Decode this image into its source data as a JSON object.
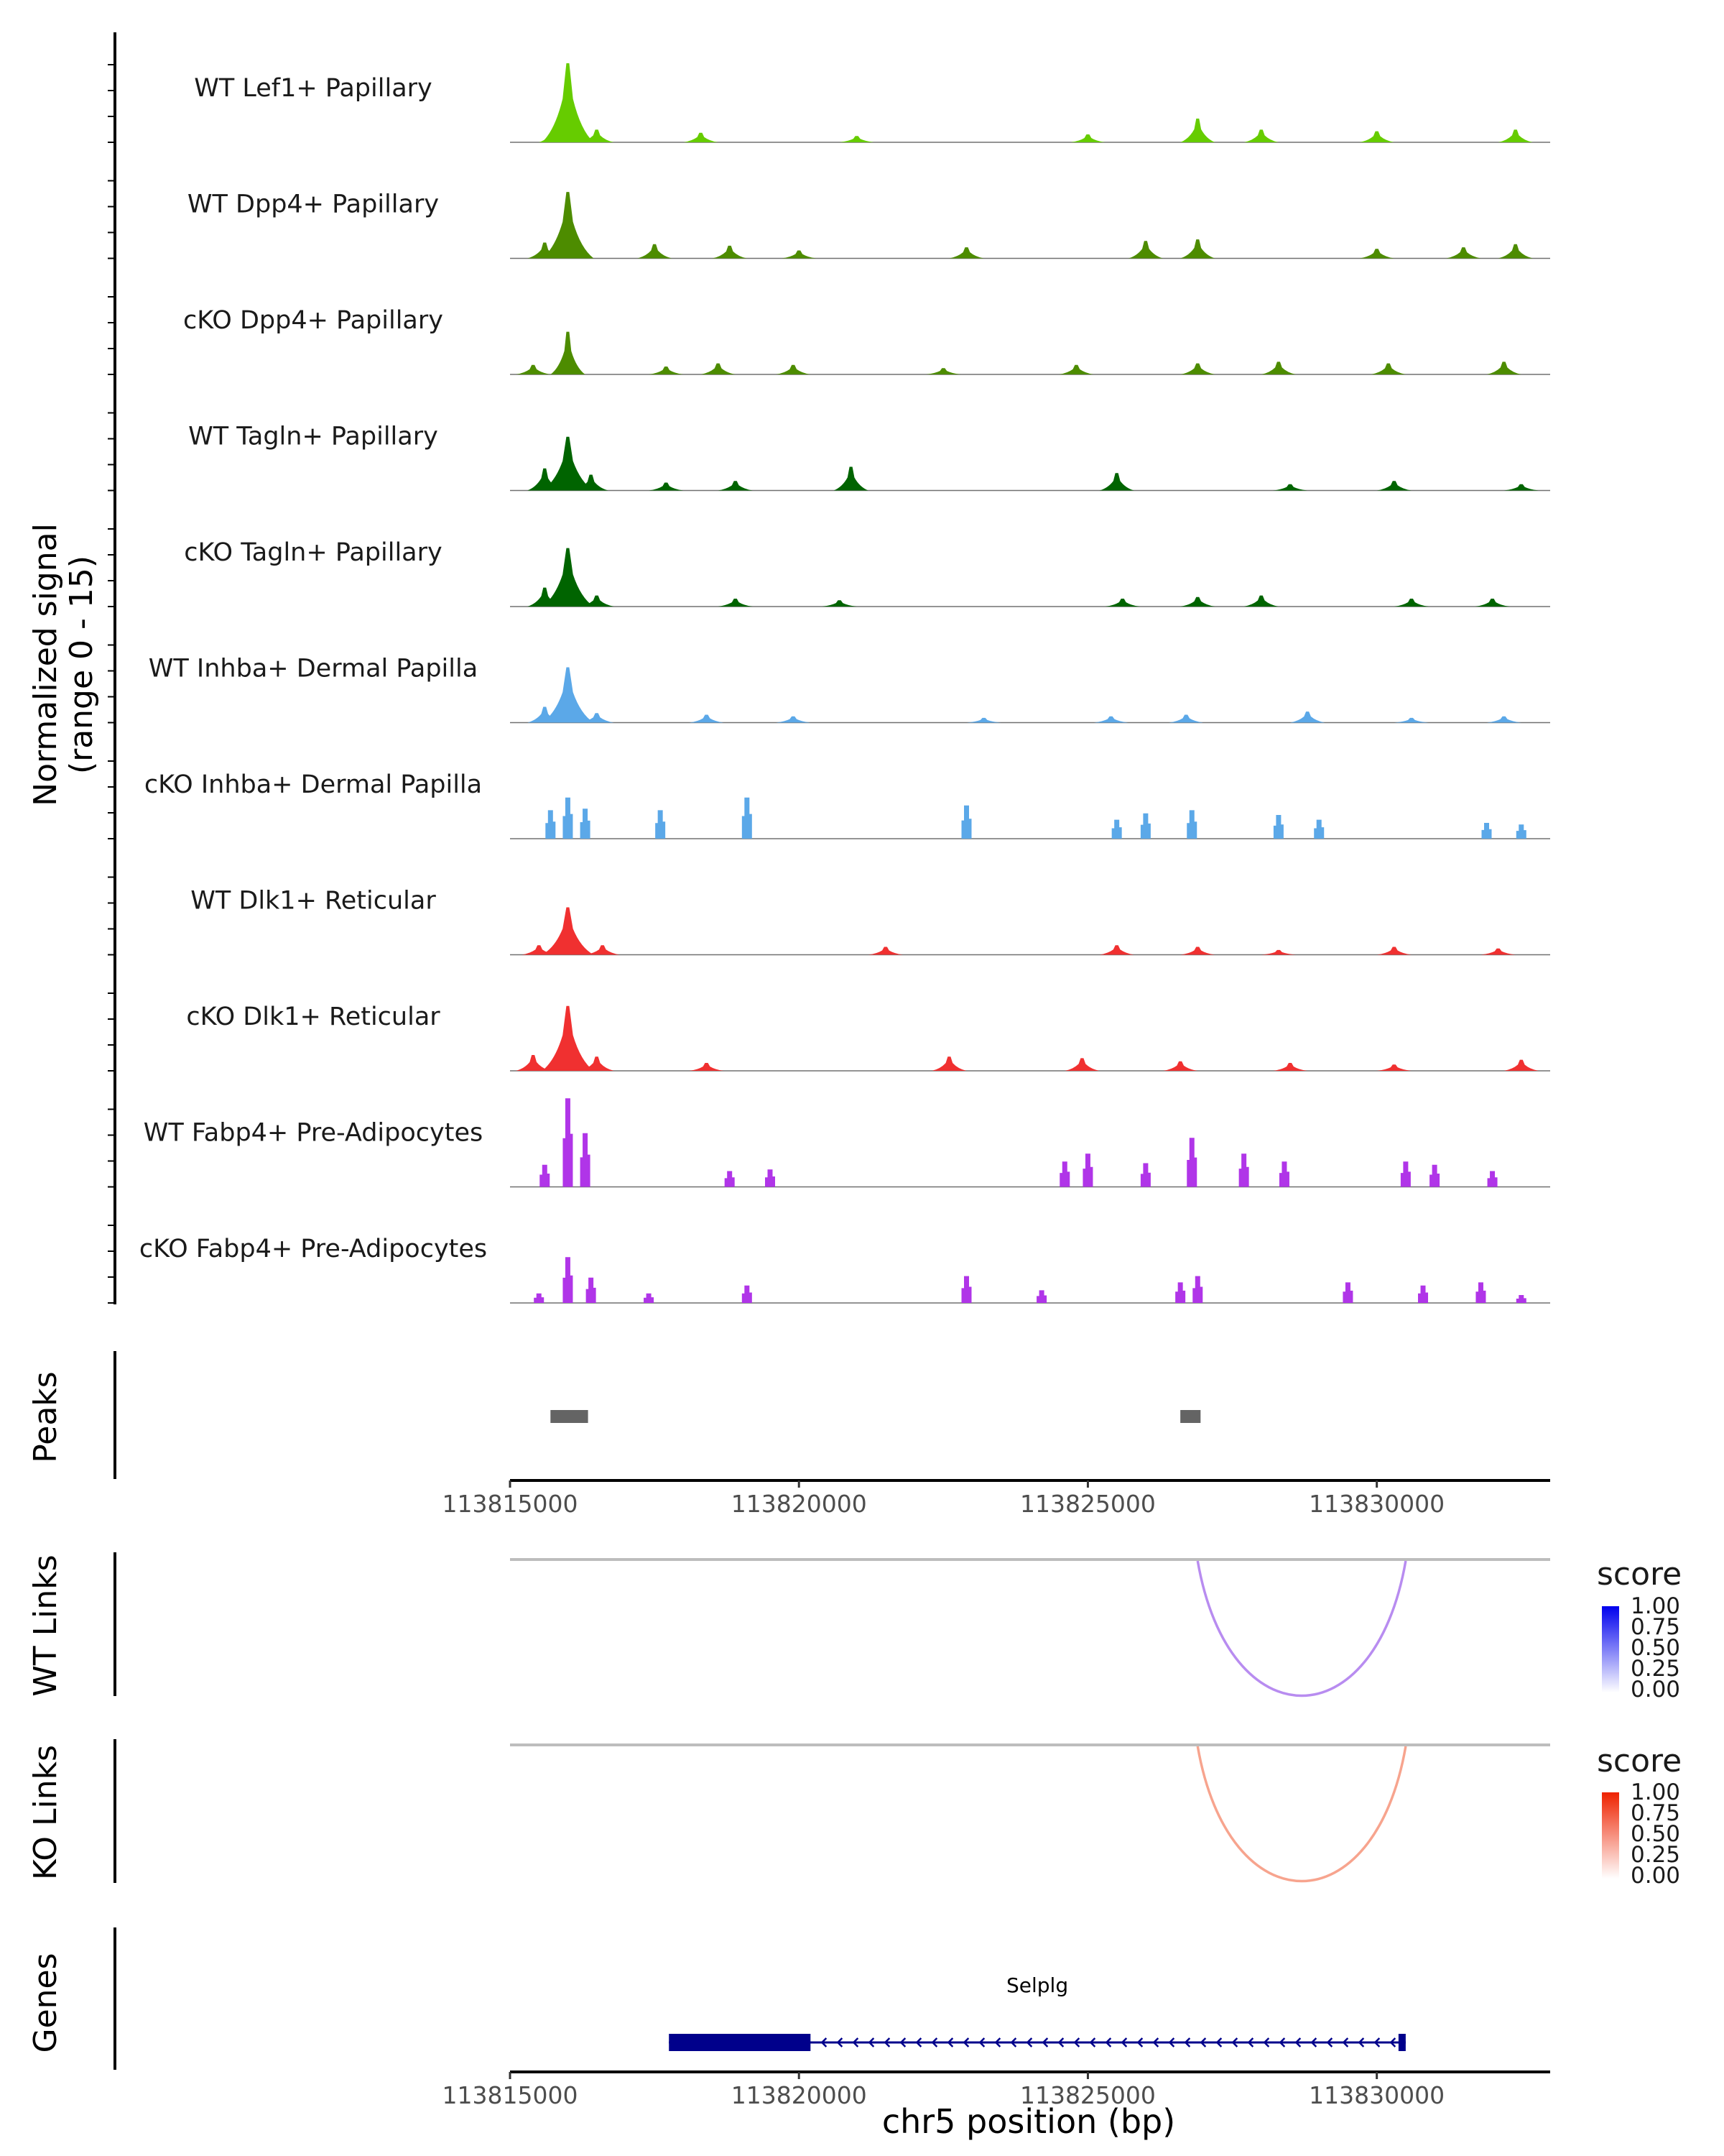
{
  "chart_data": {
    "type": "area",
    "title": "",
    "region": {
      "chromosome": "chr5",
      "start": 113815000,
      "end": 113833000
    },
    "signal_track": {
      "ylabel_line1": "Normalized signal",
      "ylabel_line2": "(range 0 - 15)",
      "ylim": [
        0,
        15
      ],
      "series": [
        {
          "name": "WT Lef1+ Papillary",
          "color": "#66cc00",
          "style": "smooth",
          "peaks": [
            [
              113816000,
              5.0
            ],
            [
              113815800,
              1.2
            ],
            [
              113816500,
              0.8
            ],
            [
              113818300,
              0.6
            ],
            [
              113821000,
              0.4
            ],
            [
              113825000,
              0.5
            ],
            [
              113826900,
              1.5
            ],
            [
              113828000,
              0.8
            ],
            [
              113830000,
              0.7
            ],
            [
              113832400,
              0.8
            ]
          ]
        },
        {
          "name": "WT Dpp4+ Papillary",
          "color": "#4d8c00",
          "style": "smooth",
          "peaks": [
            [
              113816000,
              4.2
            ],
            [
              113815600,
              1.0
            ],
            [
              113817500,
              0.9
            ],
            [
              113818800,
              0.8
            ],
            [
              113820000,
              0.5
            ],
            [
              113822900,
              0.7
            ],
            [
              113826000,
              1.1
            ],
            [
              113826900,
              1.2
            ],
            [
              113830000,
              0.6
            ],
            [
              113831500,
              0.7
            ],
            [
              113832400,
              0.9
            ]
          ]
        },
        {
          "name": "cKO Dpp4+ Papillary",
          "color": "#4d8c00",
          "style": "smooth",
          "peaks": [
            [
              113816000,
              2.7
            ],
            [
              113815400,
              0.6
            ],
            [
              113817700,
              0.5
            ],
            [
              113818600,
              0.7
            ],
            [
              113819900,
              0.6
            ],
            [
              113822500,
              0.4
            ],
            [
              113824800,
              0.6
            ],
            [
              113826900,
              0.7
            ],
            [
              113828300,
              0.8
            ],
            [
              113830200,
              0.7
            ],
            [
              113832200,
              0.8
            ]
          ]
        },
        {
          "name": "WT Tagln+ Papillary",
          "color": "#006400",
          "style": "smooth",
          "peaks": [
            [
              113816000,
              3.4
            ],
            [
              113815600,
              1.4
            ],
            [
              113816400,
              1.0
            ],
            [
              113817700,
              0.5
            ],
            [
              113818900,
              0.6
            ],
            [
              113820900,
              1.5
            ],
            [
              113825500,
              1.1
            ],
            [
              113828500,
              0.4
            ],
            [
              113830300,
              0.6
            ],
            [
              113832500,
              0.4
            ]
          ]
        },
        {
          "name": "cKO Tagln+ Papillary",
          "color": "#006400",
          "style": "smooth",
          "peaks": [
            [
              113816000,
              3.7
            ],
            [
              113815600,
              1.2
            ],
            [
              113816500,
              0.7
            ],
            [
              113818900,
              0.5
            ],
            [
              113820700,
              0.4
            ],
            [
              113825600,
              0.5
            ],
            [
              113826900,
              0.6
            ],
            [
              113828000,
              0.7
            ],
            [
              113830600,
              0.5
            ],
            [
              113832000,
              0.5
            ]
          ]
        },
        {
          "name": "WT Inhba+ Dermal Papilla",
          "color": "#5ba8e8",
          "style": "smooth",
          "peaks": [
            [
              113816000,
              3.5
            ],
            [
              113815600,
              1.0
            ],
            [
              113816500,
              0.6
            ],
            [
              113818400,
              0.5
            ],
            [
              113819900,
              0.4
            ],
            [
              113823200,
              0.3
            ],
            [
              113825400,
              0.4
            ],
            [
              113826700,
              0.5
            ],
            [
              113828800,
              0.7
            ],
            [
              113830600,
              0.3
            ],
            [
              113832200,
              0.4
            ]
          ]
        },
        {
          "name": "cKO Inhba+ Dermal Papilla",
          "color": "#5ba8e8",
          "style": "bars",
          "peaks": [
            [
              113815700,
              1.8
            ],
            [
              113816000,
              2.6
            ],
            [
              113816300,
              1.9
            ],
            [
              113817600,
              1.8
            ],
            [
              113819100,
              2.6
            ],
            [
              113822900,
              2.1
            ],
            [
              113825500,
              1.2
            ],
            [
              113826000,
              1.6
            ],
            [
              113826800,
              1.8
            ],
            [
              113828300,
              1.5
            ],
            [
              113829000,
              1.2
            ],
            [
              113831900,
              1.0
            ],
            [
              113832500,
              0.9
            ]
          ]
        },
        {
          "name": "WT Dlk1+ Reticular",
          "color": "#f03030",
          "style": "smooth",
          "peaks": [
            [
              113816000,
              3.0
            ],
            [
              113815500,
              0.6
            ],
            [
              113816600,
              0.6
            ],
            [
              113821500,
              0.5
            ],
            [
              113825500,
              0.6
            ],
            [
              113826900,
              0.5
            ],
            [
              113828300,
              0.3
            ],
            [
              113830300,
              0.5
            ],
            [
              113832100,
              0.4
            ]
          ]
        },
        {
          "name": "cKO Dlk1+ Reticular",
          "color": "#f03030",
          "style": "smooth",
          "peaks": [
            [
              113816000,
              4.1
            ],
            [
              113815400,
              1.0
            ],
            [
              113816500,
              0.9
            ],
            [
              113818400,
              0.5
            ],
            [
              113822600,
              0.9
            ],
            [
              113824900,
              0.8
            ],
            [
              113826600,
              0.6
            ],
            [
              113828500,
              0.5
            ],
            [
              113830300,
              0.4
            ],
            [
              113832500,
              0.7
            ]
          ]
        },
        {
          "name": "WT Fabp4+ Pre-Adipocytes",
          "color": "#b035e8",
          "style": "bars",
          "peaks": [
            [
              113815600,
              1.4
            ],
            [
              113816000,
              5.6
            ],
            [
              113816300,
              3.4
            ],
            [
              113818800,
              1.0
            ],
            [
              113819500,
              1.1
            ],
            [
              113824600,
              1.6
            ],
            [
              113825000,
              2.1
            ],
            [
              113826000,
              1.5
            ],
            [
              113826800,
              3.1
            ],
            [
              113827700,
              2.1
            ],
            [
              113828400,
              1.6
            ],
            [
              113830500,
              1.6
            ],
            [
              113831000,
              1.4
            ],
            [
              113832000,
              1.0
            ]
          ]
        },
        {
          "name": "cKO Fabp4+ Pre-Adipocytes",
          "color": "#b035e8",
          "style": "bars",
          "peaks": [
            [
              113815500,
              0.6
            ],
            [
              113816000,
              2.9
            ],
            [
              113816400,
              1.6
            ],
            [
              113817400,
              0.6
            ],
            [
              113819100,
              1.1
            ],
            [
              113822900,
              1.7
            ],
            [
              113824200,
              0.8
            ],
            [
              113826600,
              1.3
            ],
            [
              113826900,
              1.7
            ],
            [
              113829500,
              1.3
            ],
            [
              113830800,
              1.1
            ],
            [
              113831800,
              1.3
            ],
            [
              113832500,
              0.5
            ]
          ]
        }
      ]
    },
    "peaks_track": {
      "label": "Peaks",
      "ranges": [
        [
          113815700,
          113816350
        ],
        [
          113826600,
          113826950
        ]
      ]
    },
    "position_axis": {
      "ticks": [
        113815000,
        113820000,
        113825000,
        113830000
      ],
      "tick_labels": [
        "113815000",
        "113820000",
        "113825000",
        "113830000"
      ]
    },
    "links": [
      {
        "label": "WT Links",
        "from": 113826900,
        "to": 113830500,
        "score": 0.4,
        "palette": "blue"
      },
      {
        "label": "KO Links",
        "from": 113826900,
        "to": 113830500,
        "score": 0.4,
        "palette": "red"
      }
    ],
    "links_legend": {
      "title": "score",
      "labels": [
        "1.00",
        "0.75",
        "0.50",
        "0.25",
        "0.00"
      ],
      "blue_high": "#0000ee",
      "red_high": "#ee2200"
    },
    "genes_track": {
      "label": "Genes",
      "genes": [
        {
          "name": "Selplg",
          "start": 113817750,
          "end": 113830500,
          "cds_start": 113817750,
          "cds_end": 113820200,
          "strand": "-",
          "color": "#00008b"
        }
      ]
    },
    "xlabel": "chr5 position (bp)"
  }
}
